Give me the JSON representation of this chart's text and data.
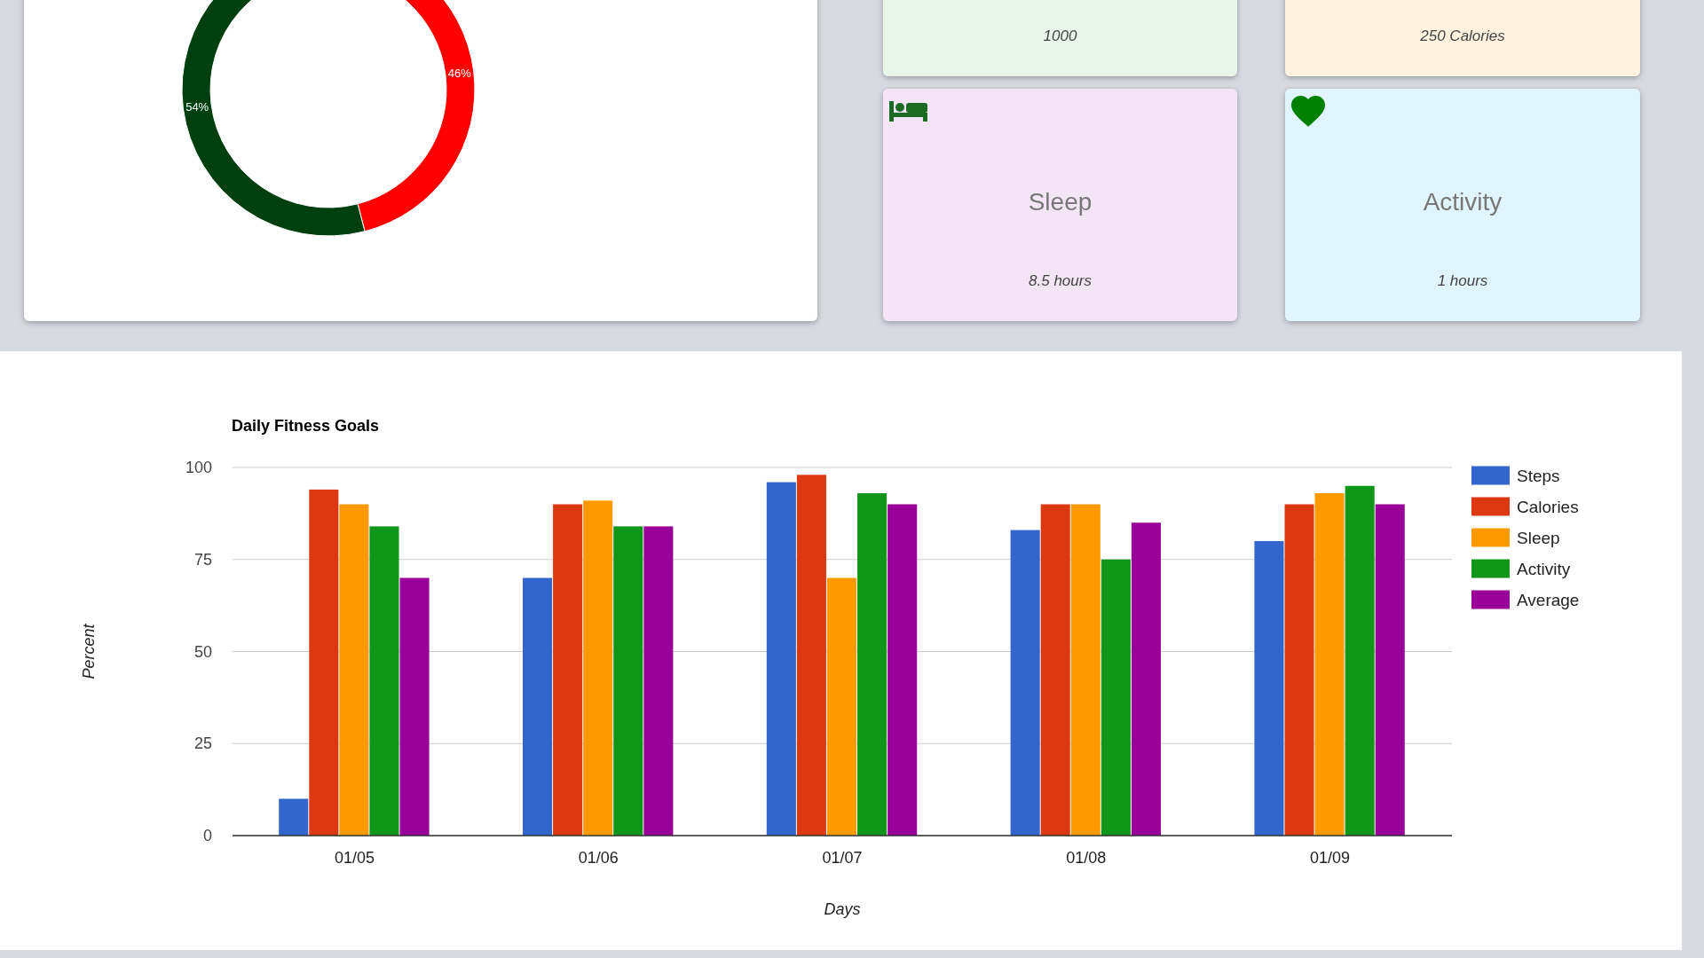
{
  "chart_data": [
    {
      "type": "donut",
      "values": [
        46,
        54
      ],
      "colors": [
        "#ff0000",
        "#004010"
      ],
      "value_labels": [
        "46%",
        "54%"
      ]
    },
    {
      "type": "other",
      "annotations": [
        "1000"
      ]
    },
    {
      "type": "other",
      "annotations": [
        "250 Calories"
      ]
    },
    {
      "type": "other",
      "title": "Sleep",
      "annotations": [
        "8.5 hours"
      ]
    },
    {
      "type": "other",
      "title": "Activity",
      "annotations": [
        "1 hours"
      ]
    },
    {
      "type": "bar",
      "title": "Daily Fitness Goals",
      "xlabel": "Days",
      "ylabel": "Percent",
      "categories": [
        "01/05",
        "01/06",
        "01/07",
        "01/08",
        "01/09"
      ],
      "series": [
        {
          "name": "Steps",
          "color": "#3366cc",
          "values": [
            10,
            70,
            96,
            83,
            80
          ]
        },
        {
          "name": "Calories",
          "color": "#dc3912",
          "values": [
            94,
            90,
            98,
            90,
            90
          ]
        },
        {
          "name": "Sleep",
          "color": "#ff9900",
          "values": [
            90,
            91,
            70,
            90,
            93
          ]
        },
        {
          "name": "Activity",
          "color": "#109618",
          "values": [
            84,
            84,
            93,
            75,
            95
          ]
        },
        {
          "name": "Average",
          "color": "#990099",
          "values": [
            70,
            84,
            90,
            85,
            90
          ]
        }
      ],
      "ylim": [
        0,
        100
      ],
      "yticks": [
        0,
        25,
        50,
        75,
        100
      ],
      "grid": "y",
      "legend": "right"
    }
  ]
}
